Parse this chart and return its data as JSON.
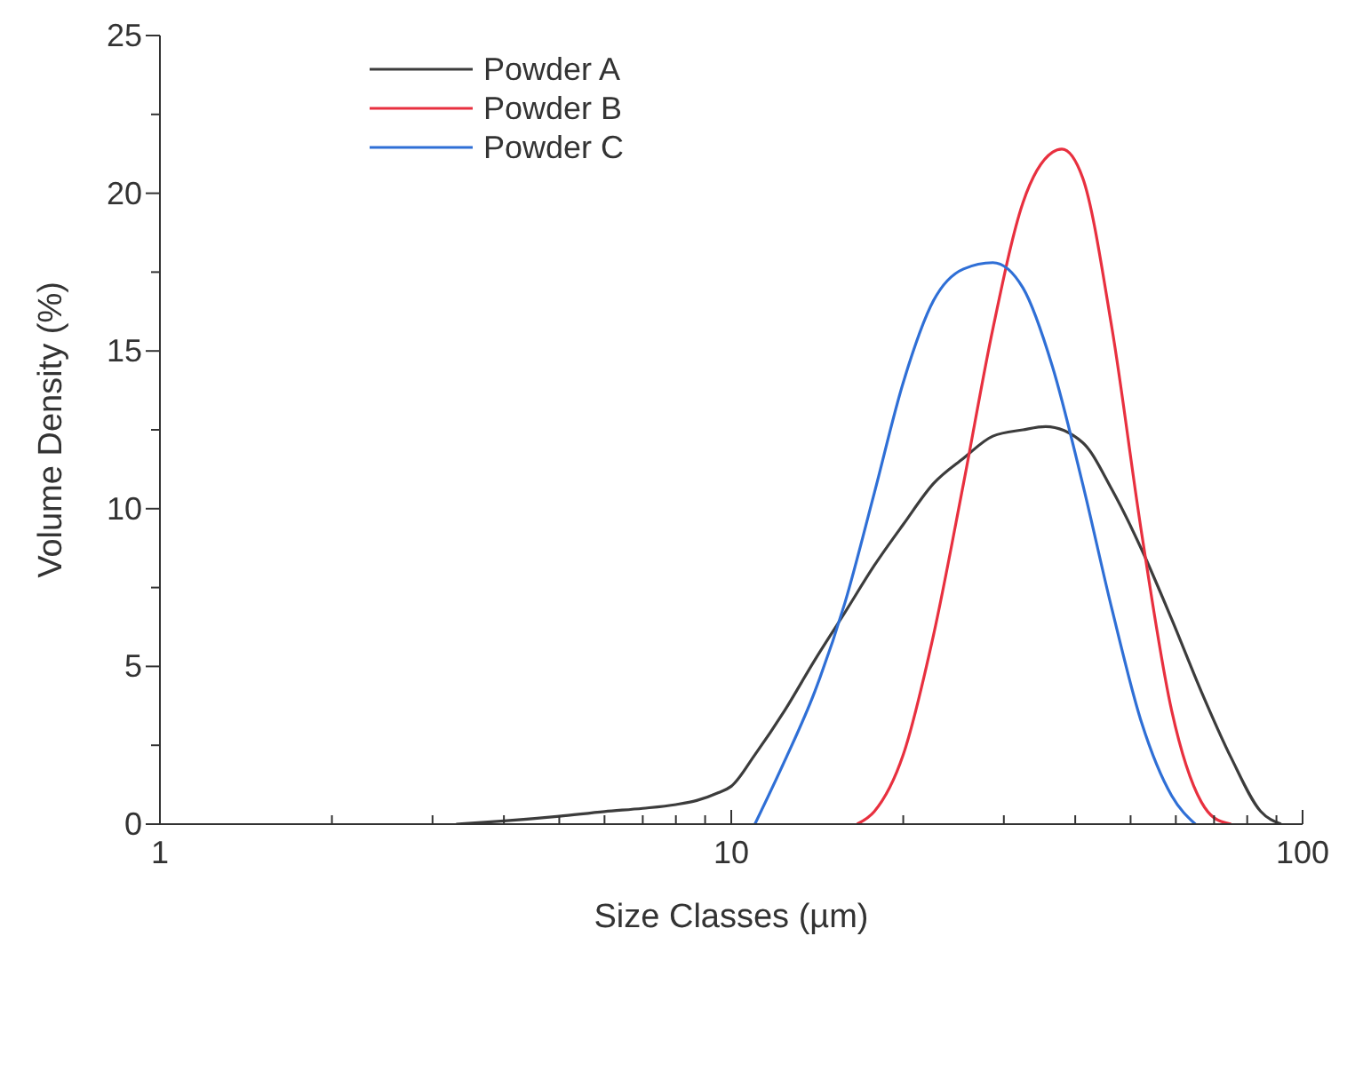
{
  "chart_data": {
    "type": "line",
    "xlabel": "Size Classes (µm)",
    "ylabel": "Volume Density (%)",
    "log": "x",
    "xlim": [
      1,
      100
    ],
    "ylim": [
      0,
      25
    ],
    "xticks": [
      1,
      {
        "value": 2,
        "label": null
      },
      {
        "value": 3,
        "label": null
      },
      {
        "value": 4,
        "label": null
      },
      {
        "value": 5,
        "label": null
      },
      {
        "value": 6,
        "label": null
      },
      {
        "value": 7,
        "label": null
      },
      {
        "value": 8,
        "label": null
      },
      {
        "value": 9,
        "label": null
      },
      10,
      {
        "value": 20,
        "label": null
      },
      {
        "value": 30,
        "label": null
      },
      {
        "value": 40,
        "label": null
      },
      {
        "value": 50,
        "label": null
      },
      {
        "value": 60,
        "label": null
      },
      {
        "value": 70,
        "label": null
      },
      {
        "value": 80,
        "label": null
      },
      {
        "value": 90,
        "label": null
      },
      100
    ],
    "yticks": [
      0,
      {
        "value": 2.5,
        "label": null
      },
      5,
      {
        "value": 7.5,
        "label": null
      },
      10,
      {
        "value": 12.5,
        "label": null
      },
      15,
      {
        "value": 17.5,
        "label": null
      },
      20,
      {
        "value": 22.5,
        "label": null
      },
      25
    ],
    "grid": false,
    "legend": "top left",
    "marker": "none",
    "line_style": "solid",
    "series": [
      {
        "name": "Powder A",
        "color": "#3c3c3c",
        "x": [
          3.3,
          4,
          5,
          6,
          7,
          8,
          8.7,
          9.5,
          10,
          11,
          12.4,
          14,
          15.8,
          17.8,
          20,
          22.6,
          25.5,
          28.7,
          32.4,
          35.5,
          41.2,
          46.4,
          52.3,
          59,
          66.5,
          75,
          84.5,
          91.7
        ],
        "values": [
          0,
          0.1,
          0.25,
          0.4,
          0.5,
          0.62,
          0.75,
          1,
          1.2,
          2.2,
          3.6,
          5.2,
          6.7,
          8.2,
          9.5,
          10.8,
          11.6,
          12.3,
          12.5,
          12.6,
          12.1,
          10.6,
          8.7,
          6.5,
          4.2,
          2.1,
          0.4,
          0
        ]
      },
      {
        "name": "Powder B",
        "color": "#e8303f",
        "x": [
          16.6,
          17.8,
          20,
          22.6,
          25.5,
          28.7,
          32.4,
          36.5,
          37.9,
          41.2,
          46.4,
          52.3,
          59,
          66.5,
          70,
          75
        ],
        "values": [
          0,
          0.4,
          2.2,
          6,
          10.8,
          15.7,
          19.7,
          21.3,
          21.4,
          20.5,
          15.7,
          9.2,
          3.6,
          0.7,
          0.2,
          0
        ]
      },
      {
        "name": "Powder C",
        "color": "#2f6fd6",
        "x": [
          11,
          12.4,
          14,
          15.8,
          17.8,
          20,
          22.6,
          25.5,
          28.7,
          32.4,
          36.5,
          41.2,
          46.4,
          52.3,
          59,
          64.9
        ],
        "values": [
          0,
          2,
          4.2,
          7,
          10.5,
          14,
          16.6,
          17.6,
          17.8,
          17,
          14.5,
          10.8,
          6.8,
          3.2,
          0.9,
          0
        ]
      }
    ]
  }
}
